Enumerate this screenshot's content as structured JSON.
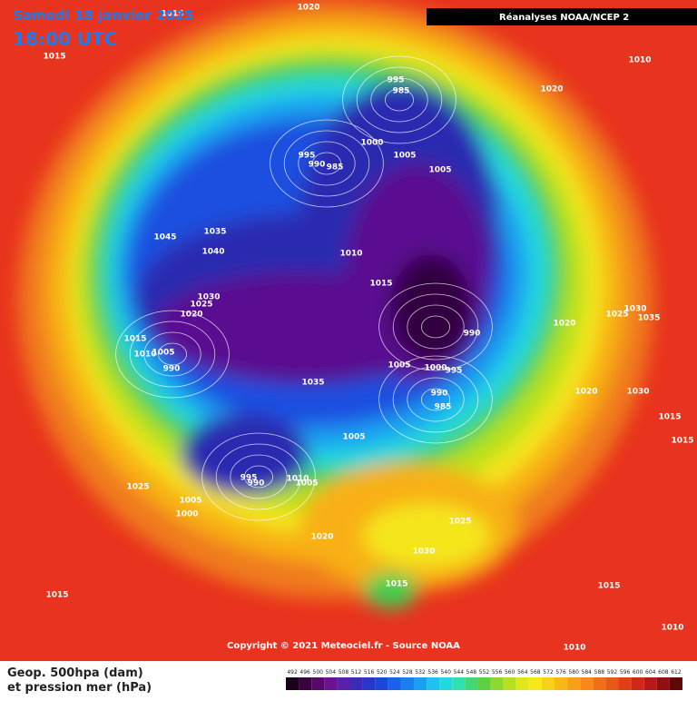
{
  "header": {
    "title": "Samedi 18 janvier 2025",
    "time": "18:00 UTC",
    "source_box": "Réanalyses NOAA/NCEP 2"
  },
  "footer": {
    "copyright": "Copyright © 2021 Meteociel.fr - Source NOAA",
    "legend_title": [
      "Geop. 500hpa (dam)",
      "et pression mer (hPa)"
    ]
  },
  "legend": {
    "ticks": [
      492,
      496,
      500,
      504,
      508,
      512,
      516,
      520,
      524,
      528,
      532,
      536,
      540,
      544,
      548,
      552,
      556,
      560,
      564,
      568,
      572,
      576,
      580,
      584,
      588,
      592,
      596,
      600,
      604,
      608,
      612
    ],
    "colors": [
      "#1a001a",
      "#3a0040",
      "#550a6a",
      "#6a1290",
      "#5a20a8",
      "#3a2cb8",
      "#2a38c8",
      "#1a48d8",
      "#1a60e8",
      "#1a80f0",
      "#1aa0f0",
      "#20c0f0",
      "#20d8e0",
      "#30e0b0",
      "#40d870",
      "#60d040",
      "#90d830",
      "#b8e020",
      "#e0e81a",
      "#f8e818",
      "#f8d018",
      "#f8b818",
      "#f8a018",
      "#f88818",
      "#f07018",
      "#e85818",
      "#e04018",
      "#d02818",
      "#b81818",
      "#901010",
      "#600808"
    ]
  },
  "map": {
    "isobar_labels": [
      "1015",
      "1015",
      "1020",
      "1010",
      "1020",
      "995",
      "985",
      "1000",
      "1005",
      "1005",
      "995",
      "990",
      "985",
      "1035",
      "1045",
      "1040",
      "1010",
      "1015",
      "1030",
      "1025",
      "1020",
      "1015",
      "1010",
      "1005",
      "990",
      "990",
      "1030",
      "1025",
      "1035",
      "1020",
      "1005",
      "1000",
      "995",
      "1035",
      "990",
      "985",
      "1020",
      "1030",
      "1015",
      "1015",
      "1005",
      "995",
      "990",
      "1010",
      "1005",
      "1025",
      "1005",
      "1000",
      "1020",
      "1025",
      "1030",
      "1015",
      "1015",
      "1015",
      "1010",
      "1010"
    ]
  }
}
